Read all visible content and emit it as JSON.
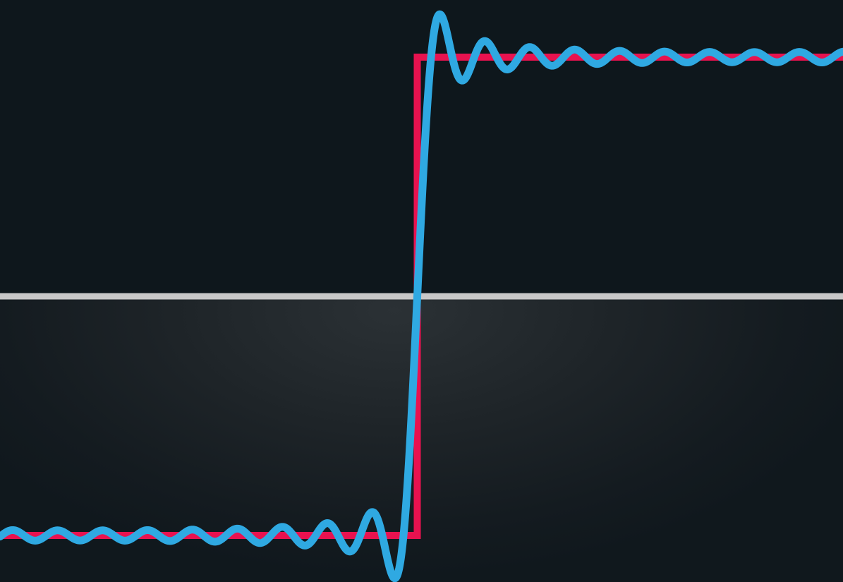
{
  "colors": {
    "background_top": "#0e171c",
    "background_bottom": "#1e2428",
    "axis_line": "#c8c8c8",
    "square_wave": "#e8124f",
    "fourier_approximation": "#2fa9e2"
  },
  "chart_data": {
    "type": "line",
    "title": "",
    "xlabel": "",
    "ylabel": "",
    "xlim": [
      -1.0,
      1.0
    ],
    "ylim": [
      -1.22,
      1.22
    ],
    "grid": false,
    "legend": "none",
    "series": [
      {
        "kind": "square_wave",
        "x": [
          -1.0,
          -0.01,
          -0.01,
          1.0
        ],
        "y": [
          -1.0,
          -1.0,
          1.0,
          1.0
        ]
      },
      {
        "kind": "partial_fourier_sum",
        "harmonics": [
          1,
          3,
          5,
          7,
          9,
          11,
          13,
          15,
          17,
          19,
          21,
          23,
          25,
          27,
          29
        ],
        "fundamental_period": 3.2,
        "amplitude": 1.0
      }
    ],
    "axis_line_y": 0
  }
}
